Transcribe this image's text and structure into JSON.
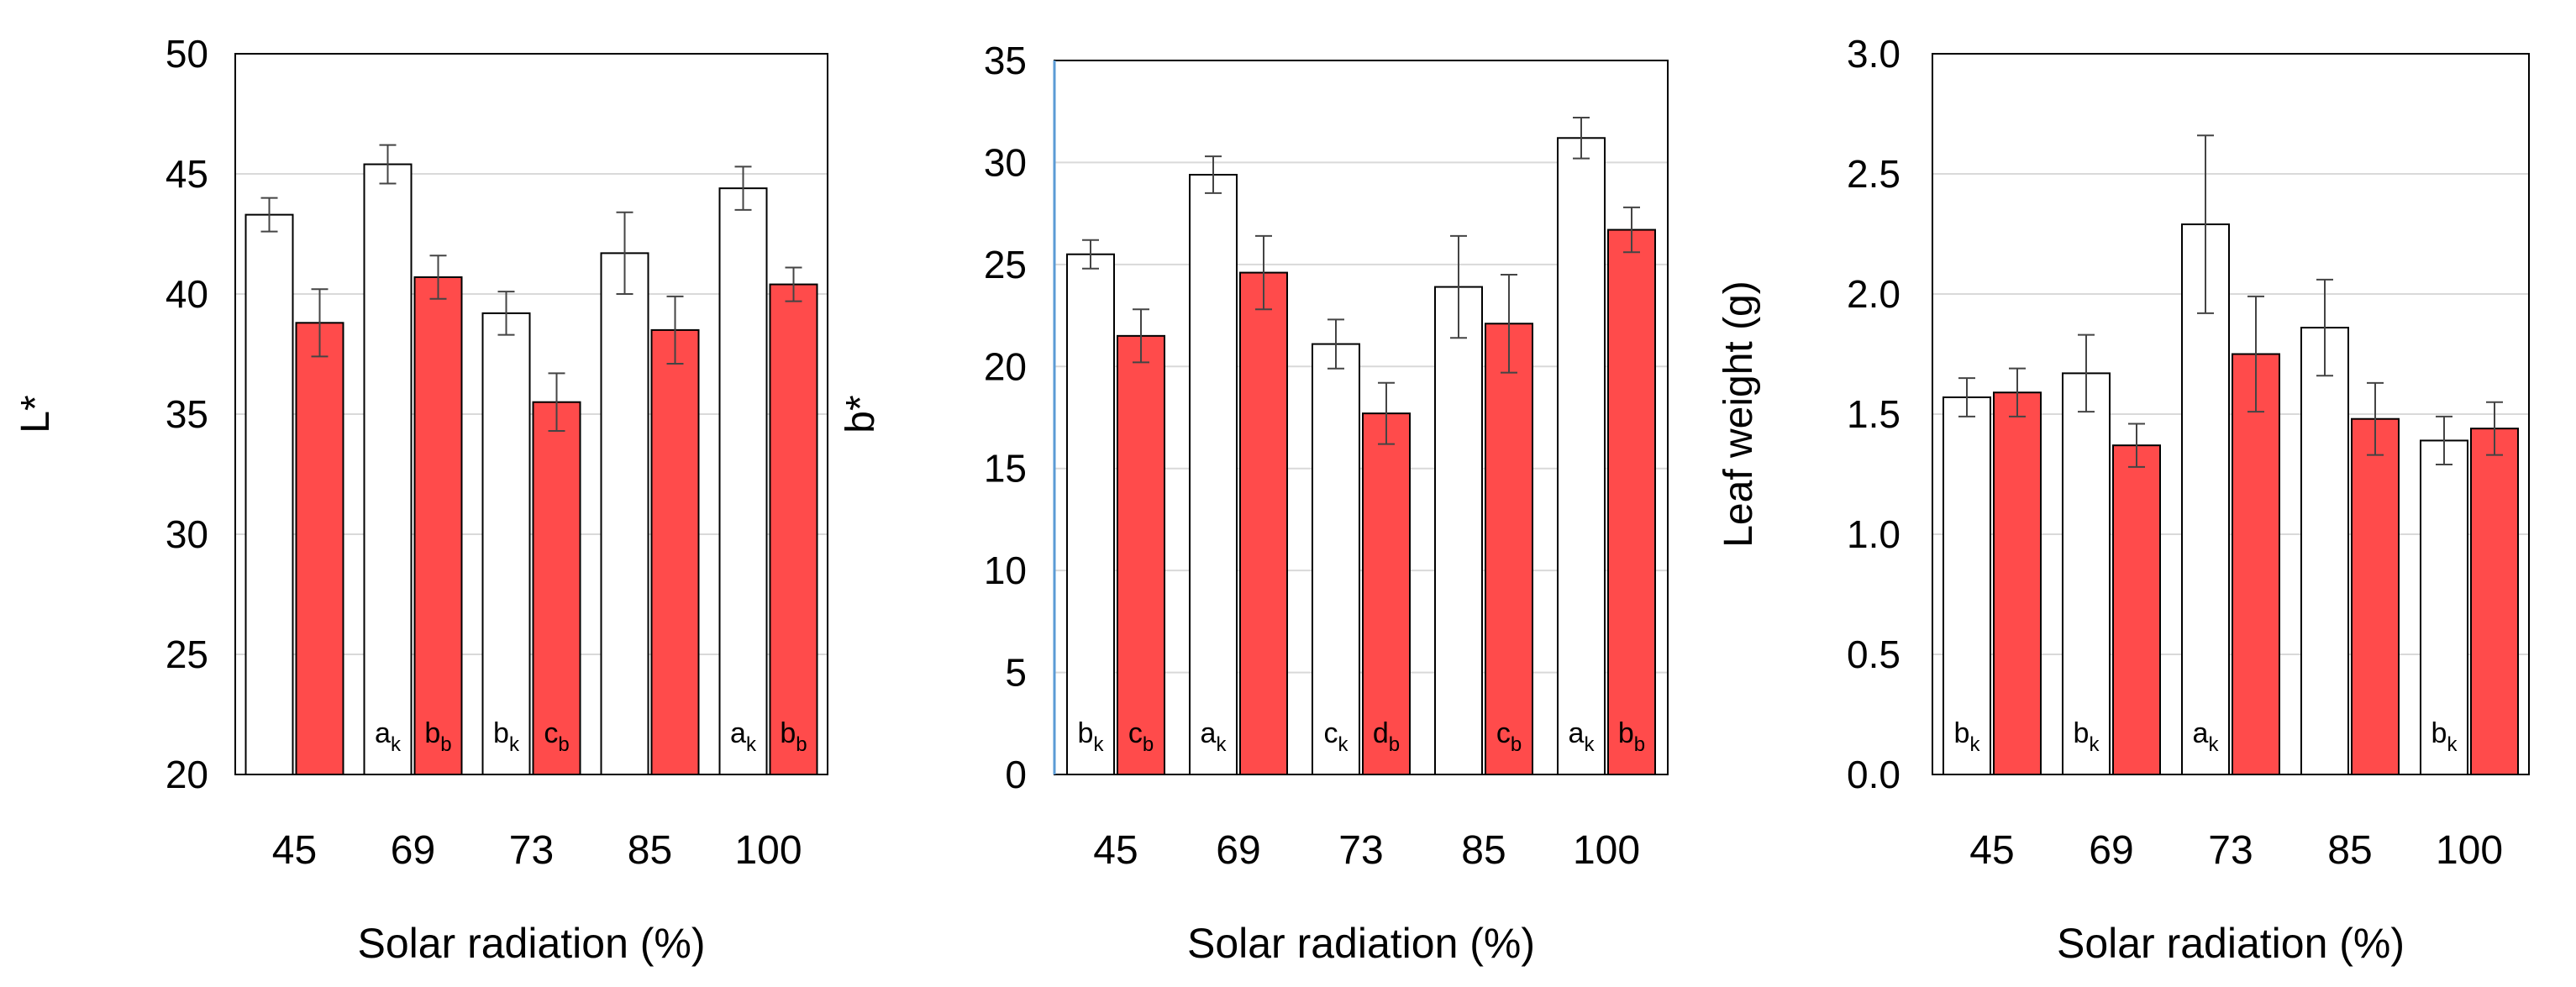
{
  "chart_data": [
    {
      "type": "bar",
      "title": "",
      "xlabel": "Solar radiation (%)",
      "ylabel": "L*",
      "ylim": [
        20,
        50
      ],
      "yticks": [
        "20",
        "25",
        "30",
        "35",
        "40",
        "45",
        "50"
      ],
      "grid": true,
      "categories": [
        "45",
        "69",
        "73",
        "85",
        "100"
      ],
      "series": [
        {
          "name": "white",
          "color": "#ffffff",
          "values": [
            43.3,
            45.4,
            39.2,
            41.7,
            44.4
          ],
          "errors": [
            0.7,
            0.8,
            0.9,
            1.7,
            0.9
          ],
          "labels": [
            {
              "base": "",
              "sub": ""
            },
            {
              "base": "a",
              "sub": "k"
            },
            {
              "base": "b",
              "sub": "k"
            },
            {
              "base": "",
              "sub": ""
            },
            {
              "base": "a",
              "sub": "k"
            }
          ]
        },
        {
          "name": "red",
          "color": "#ff4b4b",
          "values": [
            38.8,
            40.7,
            35.5,
            38.5,
            40.4
          ],
          "errors": [
            1.4,
            0.9,
            1.2,
            1.4,
            0.7
          ],
          "labels": [
            {
              "base": "",
              "sub": ""
            },
            {
              "base": "b",
              "sub": "b"
            },
            {
              "base": "c",
              "sub": "b"
            },
            {
              "base": "",
              "sub": ""
            },
            {
              "base": "b",
              "sub": "b"
            }
          ]
        }
      ]
    },
    {
      "type": "bar",
      "title": "",
      "xlabel": "Solar radiation (%)",
      "ylabel": "b*",
      "ylim": [
        0,
        35
      ],
      "yticks": [
        "0",
        "5",
        "10",
        "15",
        "20",
        "25",
        "30",
        "35"
      ],
      "grid": true,
      "categories": [
        "45",
        "69",
        "73",
        "85",
        "100"
      ],
      "series": [
        {
          "name": "white",
          "color": "#ffffff",
          "values": [
            25.5,
            29.4,
            21.1,
            23.9,
            31.2
          ],
          "errors": [
            0.7,
            0.9,
            1.2,
            2.5,
            1.0
          ],
          "labels": [
            {
              "base": "b",
              "sub": "k"
            },
            {
              "base": "a",
              "sub": "k"
            },
            {
              "base": "c",
              "sub": "k"
            },
            {
              "base": "",
              "sub": ""
            },
            {
              "base": "a",
              "sub": "k"
            }
          ]
        },
        {
          "name": "red",
          "color": "#ff4b4b",
          "values": [
            21.5,
            24.6,
            17.7,
            22.1,
            26.7
          ],
          "errors": [
            1.3,
            1.8,
            1.5,
            2.4,
            1.1
          ],
          "labels": [
            {
              "base": "c",
              "sub": "b"
            },
            {
              "base": "",
              "sub": ""
            },
            {
              "base": "d",
              "sub": "b"
            },
            {
              "base": "c",
              "sub": "b"
            },
            {
              "base": "b",
              "sub": "b"
            }
          ]
        }
      ]
    },
    {
      "type": "bar",
      "title": "",
      "xlabel": "Solar radiation (%)",
      "ylabel": "Leaf weight (g)",
      "ylim": [
        0,
        3
      ],
      "yticks": [
        "0.0",
        "0.5",
        "1.0",
        "1.5",
        "2.0",
        "2.5",
        "3.0"
      ],
      "grid": true,
      "categories": [
        "45",
        "69",
        "73",
        "85",
        "100"
      ],
      "series": [
        {
          "name": "white",
          "color": "#ffffff",
          "values": [
            1.57,
            1.67,
            2.29,
            1.86,
            1.39
          ],
          "errors": [
            0.08,
            0.16,
            0.37,
            0.2,
            0.1
          ],
          "labels": [
            {
              "base": "b",
              "sub": "k"
            },
            {
              "base": "b",
              "sub": "k"
            },
            {
              "base": "a",
              "sub": "k"
            },
            {
              "base": "",
              "sub": ""
            },
            {
              "base": "b",
              "sub": "k"
            }
          ]
        },
        {
          "name": "red",
          "color": "#ff4b4b",
          "values": [
            1.59,
            1.37,
            1.75,
            1.48,
            1.44
          ],
          "errors": [
            0.1,
            0.09,
            0.24,
            0.15,
            0.11
          ],
          "labels": [
            {
              "base": "",
              "sub": ""
            },
            {
              "base": "",
              "sub": ""
            },
            {
              "base": "",
              "sub": ""
            },
            {
              "base": "",
              "sub": ""
            },
            {
              "base": "",
              "sub": ""
            }
          ]
        }
      ]
    }
  ]
}
